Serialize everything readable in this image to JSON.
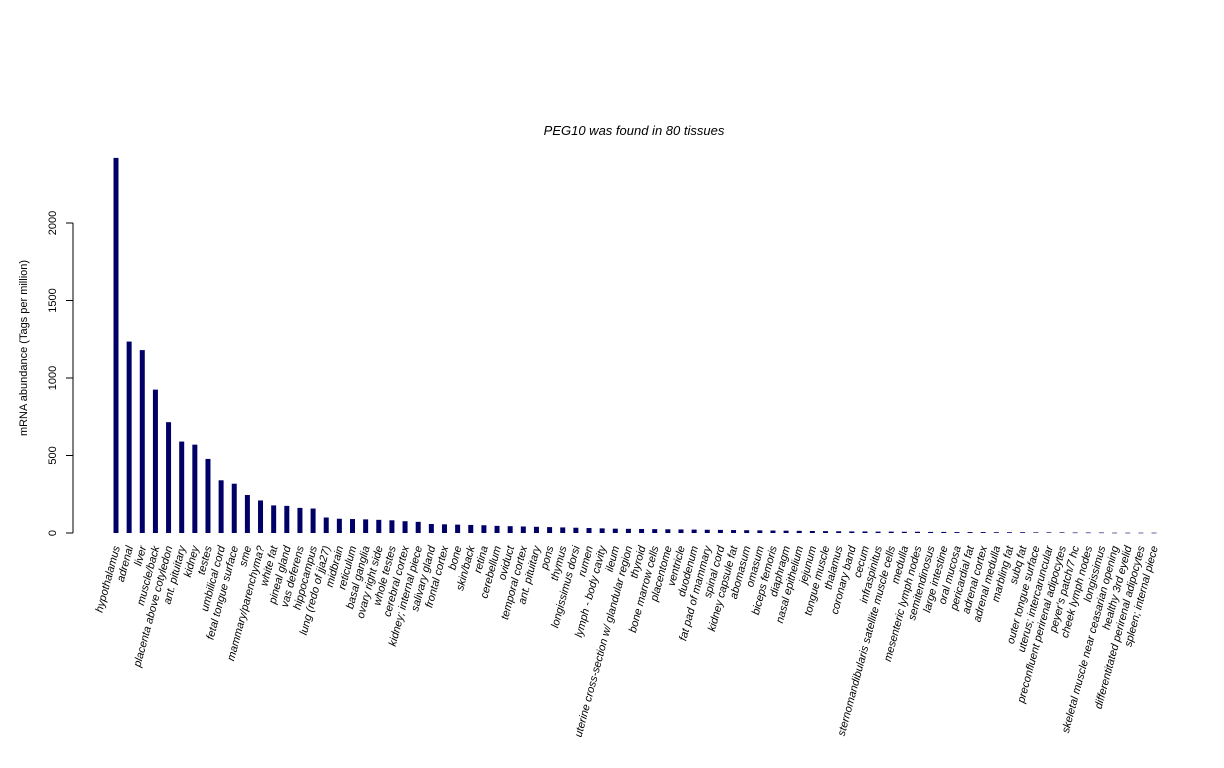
{
  "chart_data": {
    "type": "bar",
    "title": "PEG10  was found in  80  tissues",
    "xlabel": "",
    "ylabel": "mRNA abundance (Tags per million)",
    "ylim": [
      0,
      2450
    ],
    "yticks": [
      "0",
      "500",
      "1000",
      "1500",
      "2000"
    ],
    "bar_color": "#000066",
    "grid": false,
    "categories": [
      "hypothalamus",
      "adrenal",
      "liver",
      "muscle/back",
      "placenta above cotyledon",
      "ant. pituitary",
      "kidney",
      "testes",
      "umbilical cord",
      "fetal tongue surface",
      "sme",
      "mammary/parenchyma?",
      "white fat",
      "pineal gland",
      "vas deferens",
      "hippocampus",
      "lung (redo of jja27)",
      "midbrain",
      "reticulum",
      "basal ganglia",
      "ovary right side",
      "whole testes",
      "cerebral cortex",
      "kidney; internal piece",
      "salivary gland",
      "frontal cortex",
      "bone",
      "skin/back",
      "retina",
      "cerebellum",
      "oviduct",
      "temporal cortex",
      "ant. pituitary",
      "pons",
      "thymus",
      "longissimus dorsi",
      "rumen",
      "lymph - body cavity",
      "ileum",
      "uterine cross-section w/ glandular region",
      "thyroid",
      "bone marrow cells",
      "placentome",
      "ventricle",
      "duodenum",
      "fat pad of mammary",
      "spinal cord",
      "kidney capsule fat",
      "abomasum",
      "omasum",
      "biceps femoris",
      "diaphragm",
      "nasal epithelium",
      "jejunum",
      "tongue muscle",
      "thalamus",
      "coronary band",
      "cecum",
      "infraspinitus",
      "sternomandibularis satellite muscle cells",
      "medulla",
      "mesenteric lymph nodes",
      "semitendinosus",
      "large intestine",
      "oral mucosa",
      "pericardial fat",
      "adrenal cortex",
      "adrenal medulla",
      "marbling fat",
      "subq fat",
      "outer tongue surface",
      "uterus; intercaruncular",
      "preconfluent perirenal adipocytes",
      "peyer's patch/7 hc",
      "cheek lymph nodes",
      "longissimus",
      "skeletal muscle near ceasarian opening",
      "healthy 3rd eyelid",
      "differentitated perirenal adipocytes",
      "spleen; internal piece"
    ],
    "values": [
      2420,
      1235,
      1180,
      925,
      715,
      590,
      570,
      478,
      340,
      318,
      245,
      210,
      178,
      175,
      162,
      158,
      100,
      92,
      90,
      88,
      85,
      82,
      76,
      72,
      58,
      56,
      54,
      52,
      50,
      46,
      44,
      42,
      40,
      38,
      36,
      34,
      32,
      30,
      28,
      27,
      26,
      25,
      24,
      23,
      22,
      21,
      20,
      19,
      18,
      17,
      16,
      15,
      14,
      13,
      12,
      11,
      10,
      10,
      9,
      9,
      8,
      8,
      7,
      7,
      6,
      6,
      6,
      5,
      5,
      5,
      4,
      4,
      4,
      3,
      3,
      3,
      2,
      2,
      2,
      2
    ]
  }
}
